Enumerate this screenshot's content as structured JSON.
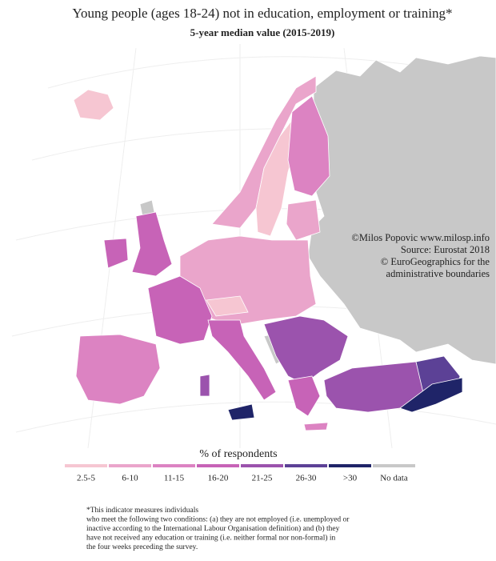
{
  "header": {
    "title": "Young people (ages 18-24) not in education, employment or training*",
    "subtitle": "5-year median value (2015-2019)"
  },
  "credits": [
    "©Milos Popovic www.milosp.info",
    "Source: Eurostat 2018",
    "© EuroGeographics for the",
    "administrative boundaries"
  ],
  "legend": {
    "title": "% of respondents",
    "items": [
      {
        "label": "2.5-5",
        "color": "#f6c6d2"
      },
      {
        "label": "6-10",
        "color": "#eaa5cb"
      },
      {
        "label": "11-15",
        "color": "#dc83c2"
      },
      {
        "label": "16-20",
        "color": "#c763b7"
      },
      {
        "label": "21-25",
        "color": "#9b53ad"
      },
      {
        "label": "26-30",
        "color": "#5c4196"
      },
      {
        "label": ">30",
        "color": "#1f2468"
      },
      {
        "label": "No data",
        "color": "#c8c8c8"
      }
    ]
  },
  "footnote": [
    "*This indicator measures individuals",
    "who meet the following two conditions: (a) they are not employed (i.e. unemployed or",
    "inactive according to the International Labour Organisation definition) and (b) they",
    "have not received any education or training (i.e. neither formal nor non-formal) in",
    "the four weeks preceding the survey."
  ]
}
